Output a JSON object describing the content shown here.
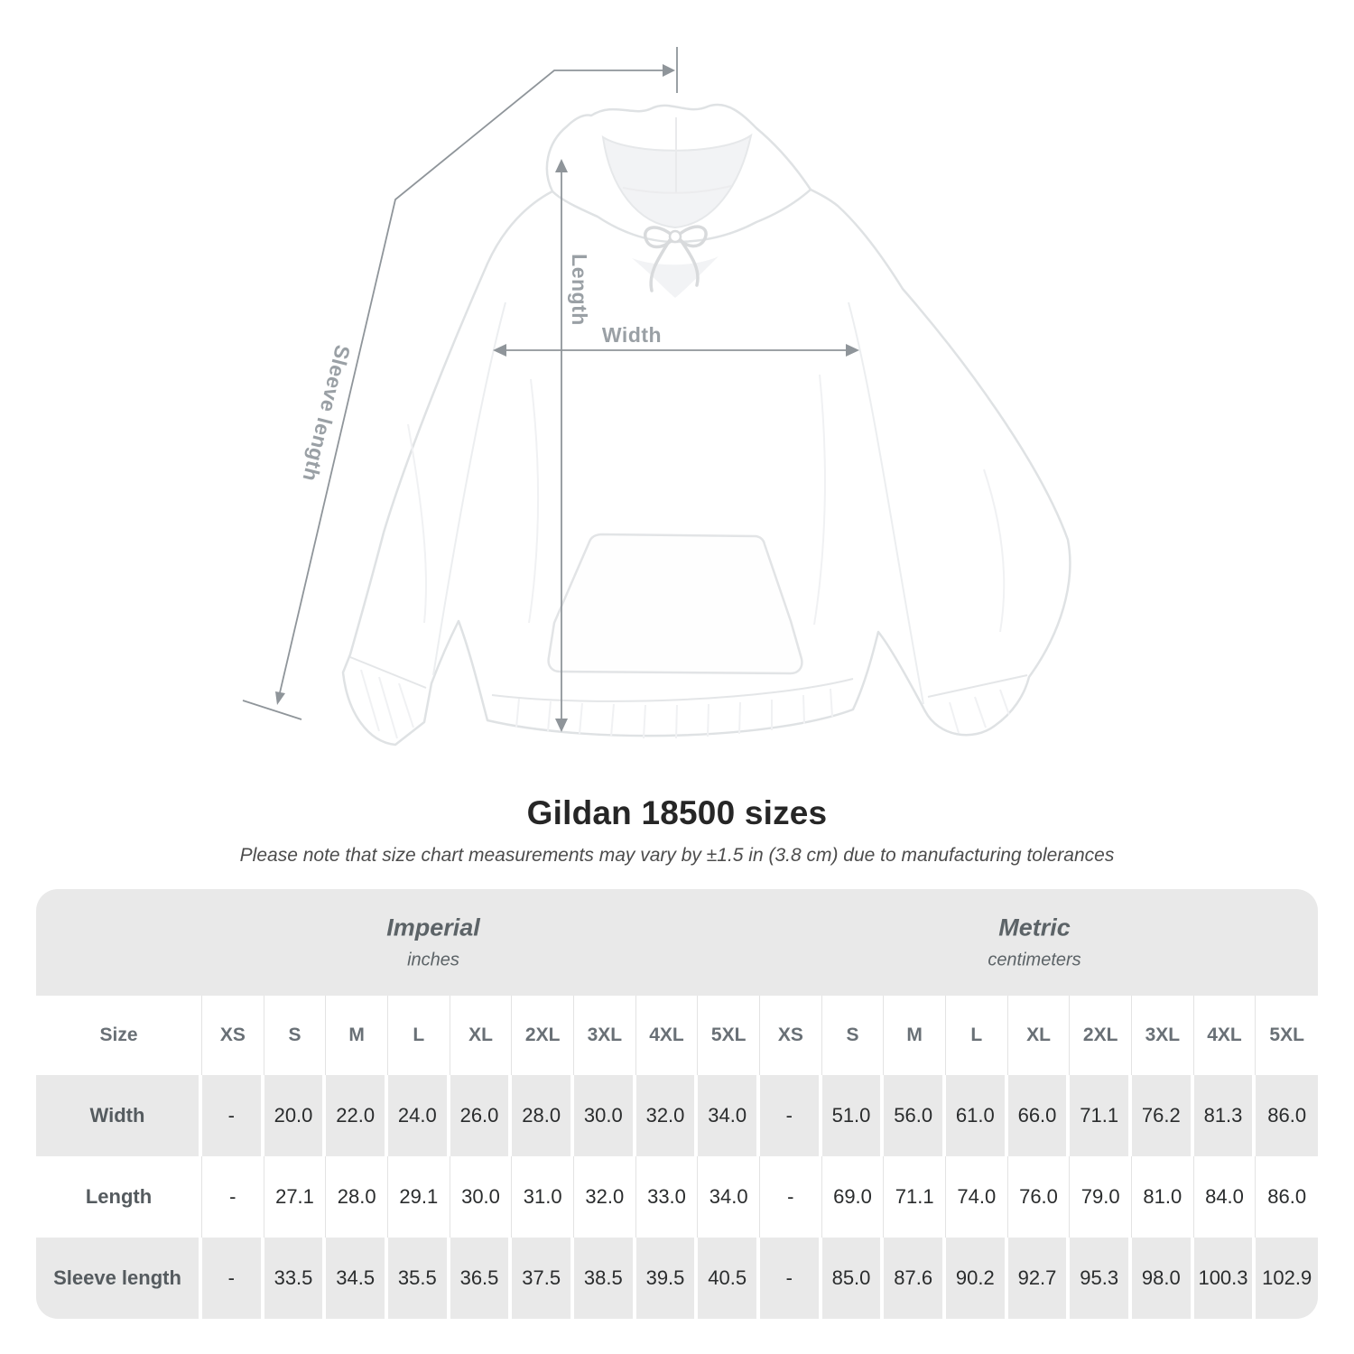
{
  "title": "Gildan 18500 sizes",
  "subtitle": "Please note that size chart measurements may vary by ±1.5 in (3.8 cm) due to manufacturing tolerances",
  "diagram": {
    "labels": {
      "width": "Width",
      "length": "Length",
      "sleeve": "Sleeve length"
    },
    "line_color": "#8f959a",
    "label_color": "#9aa0a5",
    "garment_color": "#ffffff",
    "garment_outline": "#dfe2e4"
  },
  "size_table": {
    "size_header_label": "Size",
    "sizes": [
      "XS",
      "S",
      "M",
      "L",
      "XL",
      "2XL",
      "3XL",
      "4XL",
      "5XL"
    ],
    "groups": [
      {
        "label": "Imperial",
        "sublabel": "inches"
      },
      {
        "label": "Metric",
        "sublabel": "centimeters"
      }
    ],
    "rows": [
      {
        "label": "Width",
        "imperial": [
          "-",
          "20.0",
          "22.0",
          "24.0",
          "26.0",
          "28.0",
          "30.0",
          "32.0",
          "34.0"
        ],
        "metric": [
          "-",
          "51.0",
          "56.0",
          "61.0",
          "66.0",
          "71.1",
          "76.2",
          "81.3",
          "86.0"
        ]
      },
      {
        "label": "Length",
        "imperial": [
          "-",
          "27.1",
          "28.0",
          "29.1",
          "30.0",
          "31.0",
          "32.0",
          "33.0",
          "34.0"
        ],
        "metric": [
          "-",
          "69.0",
          "71.1",
          "74.0",
          "76.0",
          "79.0",
          "81.0",
          "84.0",
          "86.0"
        ]
      },
      {
        "label": "Sleeve length",
        "imperial": [
          "-",
          "33.5",
          "34.5",
          "35.5",
          "36.5",
          "37.5",
          "38.5",
          "39.5",
          "40.5"
        ],
        "metric": [
          "-",
          "85.0",
          "87.6",
          "90.2",
          "92.7",
          "95.3",
          "98.0",
          "100.3",
          "102.9"
        ]
      }
    ],
    "colors": {
      "band": "#e9e9e9",
      "alt_row": "#e9e9e9",
      "header_text": "#697076",
      "label_text": "#555b5f",
      "value_text": "#2a2c2d"
    }
  }
}
